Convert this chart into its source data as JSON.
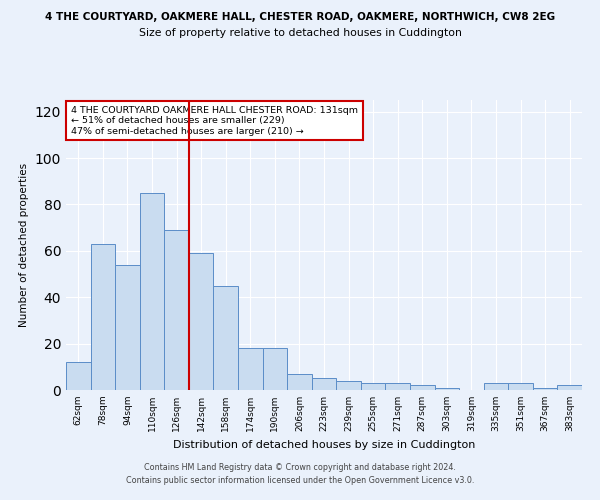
{
  "title": "4 THE COURTYARD, OAKMERE HALL, CHESTER ROAD, OAKMERE, NORTHWICH, CW8 2EG",
  "subtitle": "Size of property relative to detached houses in Cuddington",
  "xlabel": "Distribution of detached houses by size in Cuddington",
  "ylabel": "Number of detached properties",
  "bar_labels": [
    "62sqm",
    "78sqm",
    "94sqm",
    "110sqm",
    "126sqm",
    "142sqm",
    "158sqm",
    "174sqm",
    "190sqm",
    "206sqm",
    "223sqm",
    "239sqm",
    "255sqm",
    "271sqm",
    "287sqm",
    "303sqm",
    "319sqm",
    "335sqm",
    "351sqm",
    "367sqm",
    "383sqm"
  ],
  "bar_heights": [
    12,
    63,
    54,
    85,
    69,
    59,
    45,
    18,
    18,
    7,
    5,
    4,
    3,
    3,
    2,
    1,
    0,
    3,
    3,
    1,
    2
  ],
  "bar_color": "#c9dcf0",
  "bar_edge_color": "#5b8dc8",
  "vline_x": 4.5,
  "vline_color": "#cc0000",
  "annotation_text": "4 THE COURTYARD OAKMERE HALL CHESTER ROAD: 131sqm\n← 51% of detached houses are smaller (229)\n47% of semi-detached houses are larger (210) →",
  "annotation_box_color": "#ffffff",
  "annotation_box_edge": "#cc0000",
  "ylim": [
    0,
    125
  ],
  "yticks": [
    0,
    20,
    40,
    60,
    80,
    100,
    120
  ],
  "footer1": "Contains HM Land Registry data © Crown copyright and database right 2024.",
  "footer2": "Contains public sector information licensed under the Open Government Licence v3.0.",
  "background_color": "#eaf1fb",
  "plot_bg_color": "#eaf1fb"
}
